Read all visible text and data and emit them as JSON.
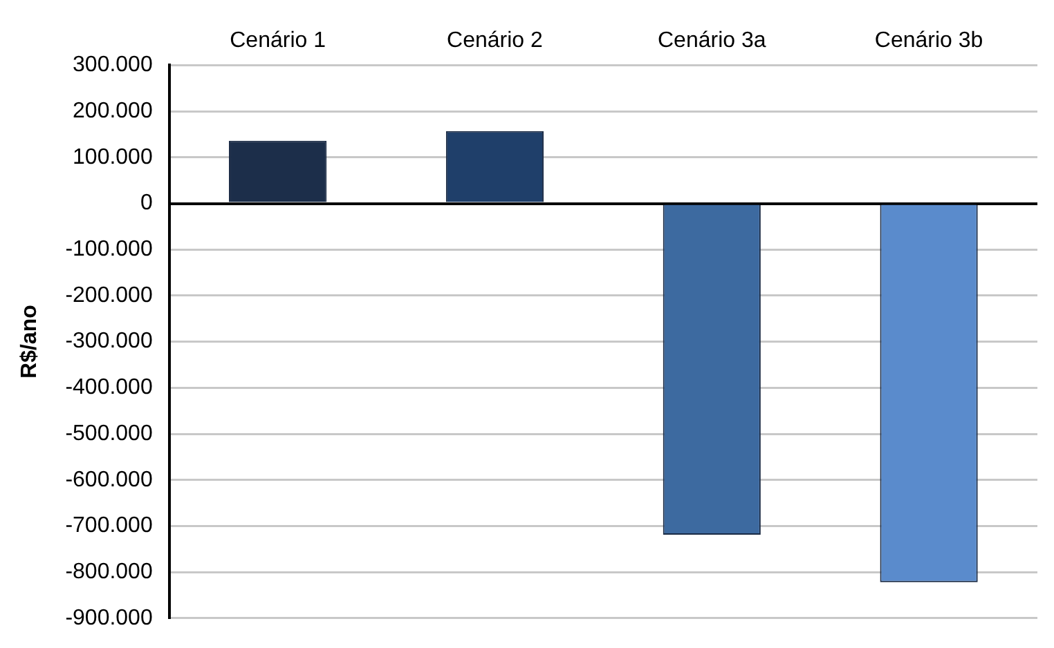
{
  "chart_data": {
    "type": "bar",
    "ylabel": "R$/ano",
    "categories": [
      "Cenário 1",
      "Cenário 2",
      "Cenário 3a",
      "Cenário 3b"
    ],
    "values": [
      136000,
      157000,
      -719000,
      -822000
    ],
    "colors": [
      "#1c2e4a",
      "#1f3f6a",
      "#3d6aa0",
      "#5a8bcc"
    ],
    "ylim": [
      -900000,
      300000
    ],
    "yticks": [
      {
        "value": -900000,
        "label": "-900.000"
      },
      {
        "value": -800000,
        "label": "-800.000"
      },
      {
        "value": -700000,
        "label": "-700.000"
      },
      {
        "value": -600000,
        "label": "-600.000"
      },
      {
        "value": -500000,
        "label": "-500.000"
      },
      {
        "value": -400000,
        "label": "-400.000"
      },
      {
        "value": -300000,
        "label": "-300.000"
      },
      {
        "value": -200000,
        "label": "-200.000"
      },
      {
        "value": -100000,
        "label": "-100.000"
      },
      0,
      {
        "value": 100000,
        "label": "100.000"
      },
      {
        "value": 200000,
        "label": "200.000"
      },
      {
        "value": 300000,
        "label": "300.000"
      }
    ],
    "grid": "y"
  }
}
